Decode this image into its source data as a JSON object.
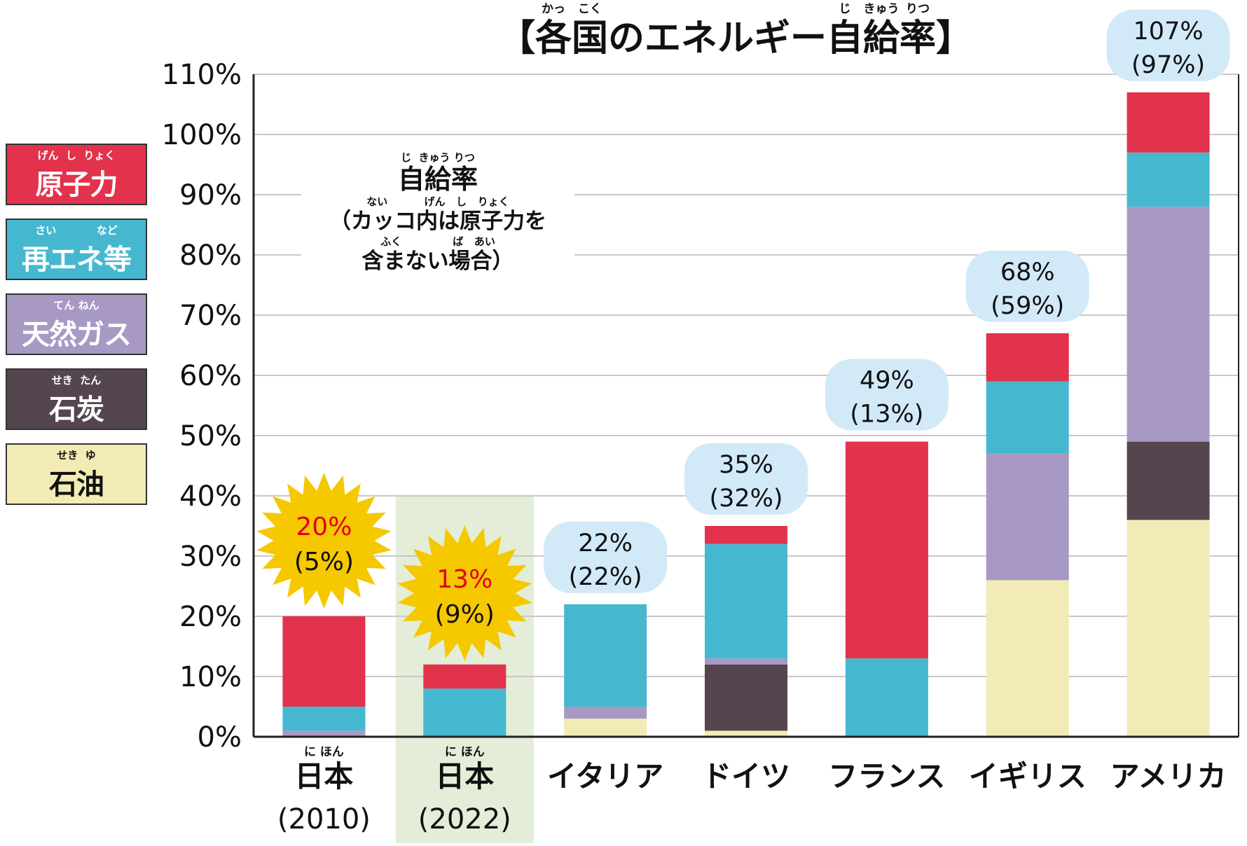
{
  "chart_data": {
    "type": "bar",
    "stacked": true,
    "title": "【各国のエネルギー自給率】",
    "title_ruby": [
      {
        "reading": "かっ",
        "under": "各"
      },
      {
        "reading": "こく",
        "under": "国"
      },
      {
        "reading": "じ",
        "under": "自"
      },
      {
        "reading": "きゅう",
        "under": "給"
      },
      {
        "reading": "りつ",
        "under": "率"
      }
    ],
    "ylim": [
      0,
      110
    ],
    "y_ticks": [
      0,
      10,
      20,
      30,
      40,
      50,
      60,
      70,
      80,
      90,
      100,
      110
    ],
    "y_tick_suffix": "%",
    "grid": true,
    "categories": [
      {
        "name": "日本",
        "ruby": "に ほん",
        "sub": "(2010)",
        "highlight": false
      },
      {
        "name": "日本",
        "ruby": "に ほん",
        "sub": "(2022)",
        "highlight": true
      },
      {
        "name": "イタリア"
      },
      {
        "name": "ドイツ"
      },
      {
        "name": "フランス"
      },
      {
        "name": "イギリス"
      },
      {
        "name": "アメリカ"
      }
    ],
    "series": [
      {
        "name": "石油",
        "ruby": "せき  ゆ",
        "color": "#f3ebb5",
        "values": [
          0,
          0,
          3,
          1,
          0,
          26,
          36
        ]
      },
      {
        "name": "石炭",
        "ruby": "せき  たん",
        "color": "#55454e",
        "values": [
          0,
          0,
          0,
          11,
          0,
          0,
          13
        ]
      },
      {
        "name": "天然ガス",
        "ruby": "てん ねん",
        "color": "#a899c4",
        "values": [
          1,
          0,
          2,
          1,
          0,
          21,
          39
        ]
      },
      {
        "name": "再エネ等",
        "ruby": "さい           など",
        "color": "#45b8d0",
        "values": [
          4,
          8,
          17,
          19,
          13,
          12,
          9
        ]
      },
      {
        "name": "原子力",
        "ruby": "げん  し  りょく",
        "color": "#e2324c",
        "values": [
          15,
          4,
          0,
          3,
          36,
          8,
          10
        ]
      }
    ],
    "totals": [
      {
        "total": "20%",
        "without_nuclear": "(5%)",
        "callout": "starburst"
      },
      {
        "total": "13%",
        "without_nuclear": "(9%)",
        "callout": "starburst"
      },
      {
        "total": "22%",
        "without_nuclear": "(22%)",
        "callout": "bubble"
      },
      {
        "total": "35%",
        "without_nuclear": "(32%)",
        "callout": "bubble"
      },
      {
        "total": "49%",
        "without_nuclear": "(13%)",
        "callout": "bubble"
      },
      {
        "total": "68%",
        "without_nuclear": "(59%)",
        "callout": "bubble"
      },
      {
        "total": "107%",
        "without_nuclear": "(97%)",
        "callout": "bubble"
      }
    ],
    "colors": {
      "starburst": "#f5c800",
      "starburst_total_text": "#e0001b",
      "bubble": "#d2e9f8",
      "highlight_bg": "#e3edd8",
      "grid": "#c8c8c8",
      "axis": "#222222"
    },
    "explanation": {
      "ruby1": "じ  きゅう りつ",
      "line1": "自給率",
      "ruby2": "ない          げん   し   りょく",
      "line2": "（カッコ内は原子力を",
      "ruby3": "ふく              ば   あい",
      "line3": "含まない場合）"
    }
  }
}
